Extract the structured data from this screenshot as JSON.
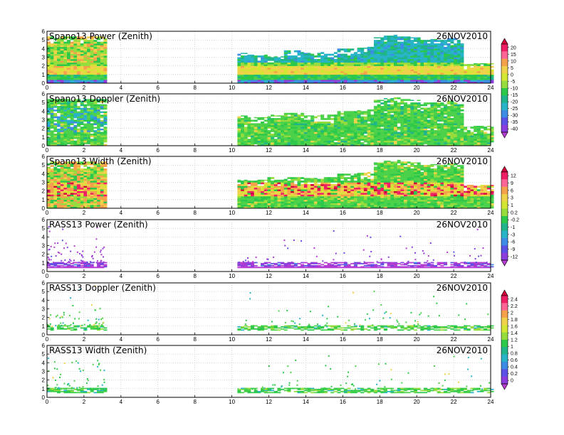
{
  "figure": {
    "date": "26NOV2010"
  },
  "chart_data": [
    {
      "type": "heatmap",
      "title": "Spano13 Power (Zenith)",
      "date_label": "26NOV2010",
      "x_ticks": [
        0,
        2,
        4,
        6,
        8,
        10,
        12,
        14,
        16,
        18,
        20,
        22,
        24
      ],
      "y_ticks": [
        0,
        1,
        2,
        3,
        4,
        5,
        6
      ],
      "xlim": [
        0,
        24
      ],
      "ylim": [
        0,
        6
      ],
      "data_segments": [
        {
          "x_start": 0.0,
          "x_end": 3.1,
          "top": [
            5.4,
            5.4,
            5.4,
            5.4,
            5.4,
            5.4,
            5.4
          ]
        },
        {
          "x_start": 10.3,
          "x_end": 24.0,
          "top": [
            3.5,
            3.3,
            3.3,
            3.1,
            3.1,
            3.8,
            3.8,
            3.5,
            3.5,
            3.6,
            3.6,
            4.0,
            4.0,
            4.1,
            4.2,
            5.3,
            5.5,
            5.6,
            5.4,
            5.3,
            5.0,
            5.1,
            5.0,
            5.2,
            5.0,
            2.2,
            2.3,
            2.3
          ]
        }
      ],
      "colorbar": {
        "id": 0
      }
    },
    {
      "type": "heatmap",
      "title": "Spano13 Doppler (Zenith)",
      "date_label": "26NOV2010",
      "x_ticks": [
        0,
        2,
        4,
        6,
        8,
        10,
        12,
        14,
        16,
        18,
        20,
        22,
        24
      ],
      "y_ticks": [
        0,
        1,
        2,
        3,
        4,
        5,
        6
      ],
      "xlim": [
        0,
        24
      ],
      "ylim": [
        0,
        6
      ],
      "data_segments": [
        {
          "x_start": 0.0,
          "x_end": 3.1,
          "top": [
            5.4,
            5.4,
            5.4,
            5.4,
            5.4,
            5.4,
            5.4
          ]
        },
        {
          "x_start": 10.3,
          "x_end": 24.0,
          "top": [
            3.5,
            3.3,
            3.3,
            3.6,
            3.5,
            3.8,
            3.8,
            3.5,
            3.5,
            3.6,
            3.6,
            4.0,
            4.0,
            4.1,
            4.2,
            5.3,
            5.5,
            5.6,
            5.4,
            5.3,
            5.0,
            5.1,
            5.0,
            5.2,
            5.0,
            2.2,
            2.3,
            2.3
          ]
        }
      ]
    },
    {
      "type": "heatmap",
      "title": "Spano13 Width (Zenith)",
      "date_label": "26NOV2010",
      "x_ticks": [
        0,
        2,
        4,
        6,
        8,
        10,
        12,
        14,
        16,
        18,
        20,
        22,
        24
      ],
      "y_ticks": [
        0,
        1,
        2,
        3,
        4,
        5,
        6
      ],
      "xlim": [
        0,
        24
      ],
      "ylim": [
        0,
        6
      ],
      "data_segments": [
        {
          "x_start": 0.0,
          "x_end": 3.1,
          "top": [
            5.4,
            5.4,
            5.4,
            5.4,
            5.4,
            5.4,
            5.4
          ]
        },
        {
          "x_start": 10.3,
          "x_end": 24.0,
          "top": [
            3.3,
            3.3,
            3.3,
            3.6,
            3.3,
            3.6,
            3.6,
            3.5,
            3.5,
            3.6,
            3.6,
            4.0,
            4.0,
            4.1,
            4.2,
            5.3,
            5.5,
            5.6,
            5.4,
            5.3,
            5.0,
            5.1,
            5.0,
            5.2,
            5.0,
            2.7,
            2.7,
            2.7
          ]
        }
      ],
      "colorbar": {
        "id": 1
      }
    },
    {
      "type": "heatmap",
      "title": "RASS13 Power (Zenith)",
      "date_label": "26NOV2010",
      "x_ticks": [
        0,
        2,
        4,
        6,
        8,
        10,
        12,
        14,
        16,
        18,
        20,
        22,
        24
      ],
      "y_ticks": [
        0,
        1,
        2,
        3,
        4,
        5,
        6
      ],
      "xlim": [
        0,
        24
      ],
      "ylim": [
        0,
        6
      ],
      "data_segments": [
        {
          "x_start": 0.0,
          "x_end": 3.1,
          "band": [
            0.5,
            1.1
          ]
        },
        {
          "x_start": 10.3,
          "x_end": 24.0,
          "band": [
            0.5,
            1.0
          ]
        }
      ]
    },
    {
      "type": "heatmap",
      "title": "RASS13 Doppler (Zenith)",
      "date_label": "26NOV2010",
      "x_ticks": [
        0,
        2,
        4,
        6,
        8,
        10,
        12,
        14,
        16,
        18,
        20,
        22,
        24
      ],
      "y_ticks": [
        0,
        1,
        2,
        3,
        4,
        5,
        6
      ],
      "xlim": [
        0,
        24
      ],
      "ylim": [
        0,
        6
      ],
      "data_segments": [
        {
          "x_start": 0.0,
          "x_end": 3.1,
          "band": [
            0.5,
            1.0
          ]
        },
        {
          "x_start": 10.3,
          "x_end": 24.0,
          "band": [
            0.5,
            1.0
          ]
        }
      ],
      "colorbar": {
        "id": 2
      }
    },
    {
      "type": "heatmap",
      "title": "RASS13 Width (Zenith)",
      "date_label": "26NOV2010",
      "x_ticks": [
        0,
        2,
        4,
        6,
        8,
        10,
        12,
        14,
        16,
        18,
        20,
        22,
        24
      ],
      "y_ticks": [
        0,
        1,
        2,
        3,
        4,
        5,
        6
      ],
      "xlim": [
        0,
        24
      ],
      "ylim": [
        0,
        6
      ],
      "data_segments": [
        {
          "x_start": 0.0,
          "x_end": 3.1,
          "band": [
            0.5,
            1.0
          ]
        },
        {
          "x_start": 10.3,
          "x_end": 24.0,
          "band": [
            0.5,
            1.0
          ]
        }
      ]
    }
  ],
  "colorbars": [
    {
      "labels": [
        "20",
        "15",
        "10",
        "5",
        "0",
        "-5",
        "-10",
        "-15",
        "-20",
        "-25",
        "-30",
        "-35",
        "-40"
      ],
      "colors": [
        "#d2003c",
        "#f01e64",
        "#ff6496",
        "#f5a04a",
        "#f0d24a",
        "#d2e632",
        "#96dc3c",
        "#2cc84a",
        "#1eb48c",
        "#28b4c8",
        "#3c8ce6",
        "#5a50e6",
        "#8c3cdc",
        "#b43cd2"
      ]
    },
    {
      "labels": [
        "12",
        "9",
        "6",
        "3",
        "1",
        "0.2",
        "-0.2",
        "-1",
        "-3",
        "-6",
        "-9",
        "-12"
      ],
      "colors": [
        "#d2003c",
        "#f01e64",
        "#ff6496",
        "#f5a04a",
        "#f0d24a",
        "#d2e632",
        "#96dc3c",
        "#2cc84a",
        "#1eb48c",
        "#28b4c8",
        "#3c8ce6",
        "#5a50e6",
        "#8c3cdc",
        "#b43cd2"
      ]
    },
    {
      "labels": [
        "2.4",
        "2.2",
        "2",
        "1.8",
        "1.6",
        "1.4",
        "1.2",
        "1",
        "0.8",
        "0.6",
        "0.4",
        "0.2",
        "0"
      ],
      "colors": [
        "#d2003c",
        "#f01e64",
        "#ff6496",
        "#f5a04a",
        "#f0d24a",
        "#d2e632",
        "#96dc3c",
        "#2cc84a",
        "#1eb48c",
        "#28b4c8",
        "#3c8ce6",
        "#5a50e6",
        "#8c3cdc",
        "#b43cd2"
      ]
    }
  ]
}
